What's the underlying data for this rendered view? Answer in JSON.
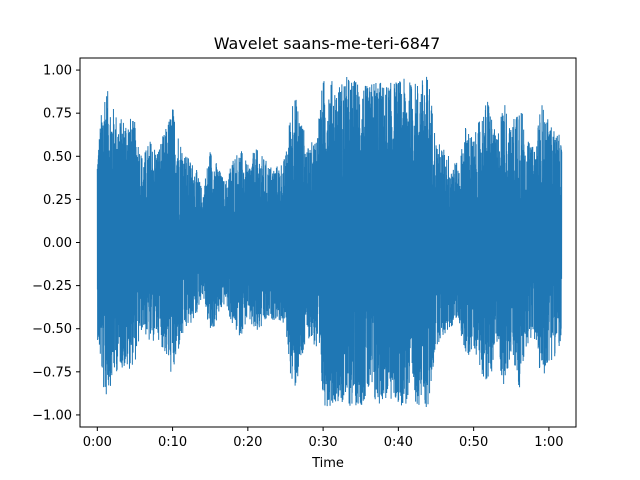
{
  "chart_data": {
    "type": "line",
    "title": "Wavelet saans-me-teri-6847",
    "xlabel": "Time",
    "ylabel": "",
    "xlim": [
      -2.3,
      63.6
    ],
    "ylim": [
      -1.07,
      1.07
    ],
    "x_ticks": [
      {
        "value": 0,
        "label": "0:00"
      },
      {
        "value": 10,
        "label": "0:10"
      },
      {
        "value": 20,
        "label": "0:20"
      },
      {
        "value": 30,
        "label": "0:30"
      },
      {
        "value": 40,
        "label": "0:40"
      },
      {
        "value": 50,
        "label": "0:50"
      },
      {
        "value": 60,
        "label": "1:00"
      }
    ],
    "y_ticks": [
      {
        "value": 1.0,
        "label": "1.00"
      },
      {
        "value": 0.75,
        "label": "0.75"
      },
      {
        "value": 0.5,
        "label": "0.50"
      },
      {
        "value": 0.25,
        "label": "0.25"
      },
      {
        "value": 0.0,
        "label": "0.00"
      },
      {
        "value": -0.25,
        "label": "−0.25"
      },
      {
        "value": -0.5,
        "label": "−0.50"
      },
      {
        "value": -0.75,
        "label": "−0.75"
      },
      {
        "value": -1.0,
        "label": "−1.00"
      }
    ],
    "grid": false,
    "legend": false,
    "series": [
      {
        "color": "#1f77b4",
        "duration": 61.7,
        "envelope": {
          "t": [
            0,
            1,
            2,
            3,
            4,
            5,
            6,
            7,
            8,
            9,
            10,
            11,
            12,
            13,
            14,
            15,
            16,
            17,
            18,
            19,
            20,
            21,
            22,
            23,
            24,
            25,
            26,
            27,
            28,
            29,
            30,
            31,
            32,
            33,
            34,
            35,
            36,
            37,
            38,
            39,
            40,
            41,
            42,
            43,
            44,
            45,
            46,
            47,
            48,
            49,
            50,
            51,
            52,
            53,
            54,
            55,
            56,
            57,
            58,
            59,
            60,
            61,
            61.7
          ],
          "upper": [
            0.55,
            0.93,
            0.8,
            0.72,
            0.75,
            0.7,
            0.5,
            0.6,
            0.55,
            0.65,
            0.8,
            0.6,
            0.5,
            0.45,
            0.3,
            0.55,
            0.45,
            0.35,
            0.5,
            0.55,
            0.45,
            0.55,
            0.5,
            0.45,
            0.45,
            0.5,
            0.9,
            0.75,
            0.55,
            0.62,
            0.95,
            0.95,
            0.92,
            0.97,
            0.95,
            0.95,
            0.9,
            0.97,
            0.92,
            0.93,
            0.95,
            0.95,
            0.93,
            0.95,
            0.98,
            0.6,
            0.55,
            0.5,
            0.45,
            0.7,
            0.6,
            0.75,
            0.85,
            0.6,
            0.85,
            0.65,
            0.9,
            0.6,
            0.55,
            0.82,
            0.7,
            0.65,
            0.6
          ],
          "lower": [
            -0.55,
            -0.93,
            -0.8,
            -0.72,
            -0.75,
            -0.7,
            -0.5,
            -0.6,
            -0.55,
            -0.65,
            -0.8,
            -0.6,
            -0.5,
            -0.45,
            -0.3,
            -0.55,
            -0.45,
            -0.35,
            -0.5,
            -0.55,
            -0.45,
            -0.55,
            -0.5,
            -0.45,
            -0.45,
            -0.5,
            -0.9,
            -0.75,
            -0.55,
            -0.62,
            -0.95,
            -0.95,
            -0.92,
            -0.97,
            -0.95,
            -0.95,
            -0.9,
            -0.97,
            -0.92,
            -0.93,
            -0.95,
            -0.95,
            -0.93,
            -0.95,
            -0.98,
            -0.6,
            -0.55,
            -0.5,
            -0.45,
            -0.7,
            -0.6,
            -0.75,
            -0.85,
            -0.6,
            -0.85,
            -0.65,
            -0.9,
            -0.6,
            -0.55,
            -0.82,
            -0.7,
            -0.65,
            -0.6
          ]
        }
      }
    ]
  }
}
